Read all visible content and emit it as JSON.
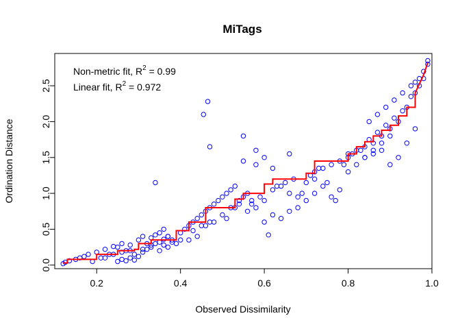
{
  "chart_data": {
    "type": "scatter",
    "title": "MiTags",
    "xlabel": "Observed Dissimilarity",
    "ylabel": "Ordination Distance",
    "xlim": [
      0.1,
      1.0
    ],
    "ylim": [
      -0.05,
      2.95
    ],
    "x_ticks": [
      "0.2",
      "0.4",
      "0.6",
      "0.8",
      "1.0"
    ],
    "y_ticks": [
      "0.0",
      "0.5",
      "1.0",
      "1.5",
      "2.0",
      "2.5"
    ],
    "grid": false,
    "annotations": {
      "nonmetric": {
        "prefix": "Non-metric fit, R",
        "sup": "2",
        "suffix": " = 0.99"
      },
      "linear": {
        "prefix": "Linear fit, R",
        "sup": "2",
        "suffix": " = 0.972"
      }
    },
    "colors": {
      "points": "#0000ff",
      "fit_line": "#ff0000",
      "frame": "#000000"
    },
    "series": [
      {
        "kind": "points",
        "x": [
          0.12,
          0.125,
          0.135,
          0.15,
          0.16,
          0.17,
          0.18,
          0.2,
          0.22,
          0.24,
          0.19,
          0.21,
          0.23,
          0.25,
          0.26,
          0.27,
          0.28,
          0.29,
          0.25,
          0.26,
          0.27,
          0.28,
          0.29,
          0.3,
          0.31,
          0.32,
          0.33,
          0.34,
          0.35,
          0.36,
          0.37,
          0.3,
          0.31,
          0.32,
          0.33,
          0.34,
          0.35,
          0.36,
          0.37,
          0.38,
          0.39,
          0.34,
          0.36,
          0.4,
          0.41,
          0.42,
          0.43,
          0.44,
          0.45,
          0.46,
          0.47,
          0.48,
          0.49,
          0.5,
          0.51,
          0.52,
          0.53,
          0.54,
          0.55,
          0.56,
          0.57,
          0.42,
          0.44,
          0.46,
          0.48,
          0.5,
          0.52,
          0.54,
          0.56,
          0.58,
          0.6,
          0.455,
          0.465,
          0.47,
          0.55,
          0.58,
          0.6,
          0.62,
          0.64,
          0.66,
          0.68,
          0.7,
          0.72,
          0.74,
          0.76,
          0.78,
          0.8,
          0.6,
          0.62,
          0.64,
          0.66,
          0.68,
          0.7,
          0.72,
          0.74,
          0.76,
          0.78,
          0.8,
          0.82,
          0.84,
          0.86,
          0.88,
          0.9,
          0.8,
          0.82,
          0.84,
          0.86,
          0.88,
          0.9,
          0.92,
          0.94,
          0.96,
          0.97,
          0.98,
          0.99,
          0.85,
          0.87,
          0.89,
          0.91,
          0.93,
          0.95,
          0.96,
          0.97,
          0.98,
          0.99,
          0.9,
          0.92,
          0.94,
          0.96,
          0.84,
          0.86,
          0.88,
          0.55,
          0.62,
          0.58,
          0.66,
          0.72,
          0.77,
          0.61,
          0.75,
          0.69,
          0.43,
          0.4,
          0.38,
          0.33,
          0.31,
          0.28,
          0.26,
          0.24,
          0.22,
          0.35,
          0.37,
          0.45,
          0.47,
          0.51,
          0.53,
          0.57,
          0.59,
          0.63,
          0.65,
          0.67,
          0.71,
          0.73,
          0.79,
          0.81,
          0.83,
          0.85,
          0.87,
          0.89,
          0.91,
          0.93,
          0.95
        ],
        "y": [
          0.02,
          0.04,
          0.06,
          0.08,
          0.1,
          0.12,
          0.15,
          0.18,
          0.22,
          0.26,
          0.05,
          0.1,
          0.15,
          0.05,
          0.08,
          0.06,
          0.1,
          0.07,
          0.25,
          0.3,
          0.2,
          0.28,
          0.15,
          0.12,
          0.18,
          0.22,
          0.25,
          0.3,
          0.2,
          0.28,
          0.25,
          0.35,
          0.4,
          0.3,
          0.38,
          0.42,
          0.32,
          0.36,
          0.4,
          0.35,
          0.3,
          1.15,
          0.5,
          0.45,
          0.5,
          0.55,
          0.6,
          0.65,
          0.7,
          0.75,
          0.8,
          0.85,
          0.9,
          0.95,
          1.0,
          1.05,
          1.1,
          0.9,
          0.95,
          1.0,
          0.85,
          0.35,
          0.4,
          0.55,
          0.6,
          0.7,
          0.8,
          0.85,
          0.75,
          0.8,
          0.9,
          2.1,
          2.28,
          1.65,
          1.8,
          1.4,
          1.5,
          1.05,
          1.1,
          1.0,
          0.95,
          1.15,
          1.3,
          1.35,
          1.4,
          1.45,
          1.5,
          0.6,
          0.7,
          0.65,
          0.75,
          0.8,
          0.9,
          1.0,
          1.1,
          0.95,
          1.05,
          1.55,
          1.6,
          1.65,
          1.7,
          1.8,
          1.9,
          1.3,
          1.4,
          1.5,
          1.6,
          1.7,
          1.8,
          2.0,
          2.2,
          2.4,
          2.5,
          2.6,
          2.8,
          2.0,
          2.1,
          2.2,
          2.3,
          2.4,
          2.5,
          2.55,
          2.6,
          2.7,
          2.85,
          1.4,
          1.5,
          1.7,
          1.9,
          1.5,
          1.55,
          1.6,
          1.45,
          1.35,
          1.6,
          1.55,
          1.2,
          0.9,
          0.42,
          1.15,
          1.0,
          0.48,
          0.35,
          0.32,
          0.28,
          0.22,
          0.2,
          0.18,
          0.15,
          0.1,
          0.45,
          0.4,
          0.55,
          0.6,
          0.65,
          0.8,
          0.9,
          0.95,
          1.1,
          1.15,
          1.2,
          1.25,
          1.35,
          1.4,
          1.55,
          1.6,
          1.75,
          1.85,
          1.95,
          2.05,
          2.15,
          2.35
        ]
      },
      {
        "kind": "step-line",
        "x": [
          0.12,
          0.13,
          0.13,
          0.2,
          0.2,
          0.25,
          0.25,
          0.29,
          0.29,
          0.3,
          0.3,
          0.33,
          0.33,
          0.39,
          0.39,
          0.42,
          0.42,
          0.46,
          0.46,
          0.53,
          0.53,
          0.55,
          0.55,
          0.6,
          0.6,
          0.62,
          0.62,
          0.7,
          0.7,
          0.72,
          0.72,
          0.8,
          0.8,
          0.82,
          0.82,
          0.84,
          0.84,
          0.86,
          0.86,
          0.88,
          0.88,
          0.9,
          0.9,
          0.92,
          0.92,
          0.94,
          0.94,
          0.96,
          0.96,
          0.98,
          0.99
        ],
        "y": [
          0.03,
          0.03,
          0.08,
          0.08,
          0.15,
          0.15,
          0.2,
          0.2,
          0.22,
          0.22,
          0.3,
          0.3,
          0.35,
          0.35,
          0.48,
          0.48,
          0.6,
          0.6,
          0.8,
          0.8,
          0.92,
          0.92,
          1.0,
          1.0,
          1.13,
          1.13,
          1.2,
          1.2,
          1.28,
          1.28,
          1.45,
          1.45,
          1.55,
          1.55,
          1.65,
          1.65,
          1.72,
          1.72,
          1.8,
          1.8,
          1.88,
          1.88,
          1.95,
          1.95,
          2.08,
          2.08,
          2.2,
          2.2,
          2.4,
          2.65,
          2.82
        ]
      }
    ]
  }
}
